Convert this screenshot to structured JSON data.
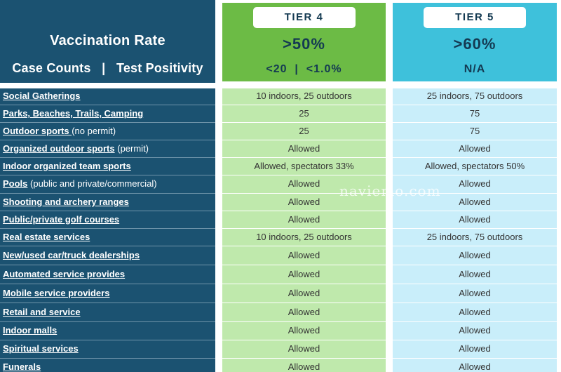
{
  "header": {
    "line1": "Vaccination Rate",
    "line2": "Case Counts   |   Test Positivity"
  },
  "tiers": [
    {
      "label": "TIER 4",
      "vaccination": ">50%",
      "case_positivity": "<20  |  <1.0%"
    },
    {
      "label": "TIER 5",
      "vaccination": ">60%",
      "case_positivity": "N/A"
    }
  ],
  "rows": [
    {
      "name": "Social Gatherings",
      "note": "",
      "tier4": "10 indoors, 25 outdoors",
      "tier5": "25 indoors, 75 outdoors"
    },
    {
      "name": "Parks, Beaches, Trails, Camping",
      "note": "",
      "tier4": "25",
      "tier5": "75"
    },
    {
      "name": "Outdoor sports ",
      "note": "(no permit)",
      "tier4": "25",
      "tier5": "75"
    },
    {
      "name": "Organized outdoor sports",
      "note": " (permit)",
      "tier4": "Allowed",
      "tier5": "Allowed"
    },
    {
      "name": "Indoor organized team sports ",
      "note": "",
      "tier4": "Allowed, spectators 33%",
      "tier5": "Allowed, spectators 50%"
    },
    {
      "name": "Pools",
      "note": " (public and private/commercial)",
      "tier4": "Allowed",
      "tier5": "Allowed"
    },
    {
      "name": "Shooting and archery ranges",
      "note": "",
      "tier4": "Allowed",
      "tier5": "Allowed"
    },
    {
      "name": "Public/private golf courses ",
      "note": "",
      "tier4": "Allowed",
      "tier5": "Allowed"
    },
    {
      "name": "Real estate services ",
      "note": "",
      "tier4": "10 indoors, 25 outdoors",
      "tier5": "25 indoors, 75 outdoors"
    },
    {
      "name": "New/used car/truck dealerships",
      "note": "",
      "tier4": "Allowed",
      "tier5": "Allowed"
    },
    {
      "name": "Automated service provides ",
      "note": "",
      "tier4": "Allowed",
      "tier5": "Allowed"
    },
    {
      "name": "Mobile service providers ",
      "note": "",
      "tier4": "Allowed",
      "tier5": "Allowed"
    },
    {
      "name": "Retail and service",
      "note": "",
      "tier4": "Allowed",
      "tier5": "Allowed"
    },
    {
      "name": "Indoor malls",
      "note": "",
      "tier4": "Allowed",
      "tier5": "Allowed"
    },
    {
      "name": "Spiritual services",
      "note": "",
      "tier4": "Allowed",
      "tier5": "Allowed"
    },
    {
      "name": "Funerals ",
      "note": "",
      "tier4": "Allowed",
      "tier5": "Allowed"
    }
  ],
  "watermark": "naviemo.com"
}
